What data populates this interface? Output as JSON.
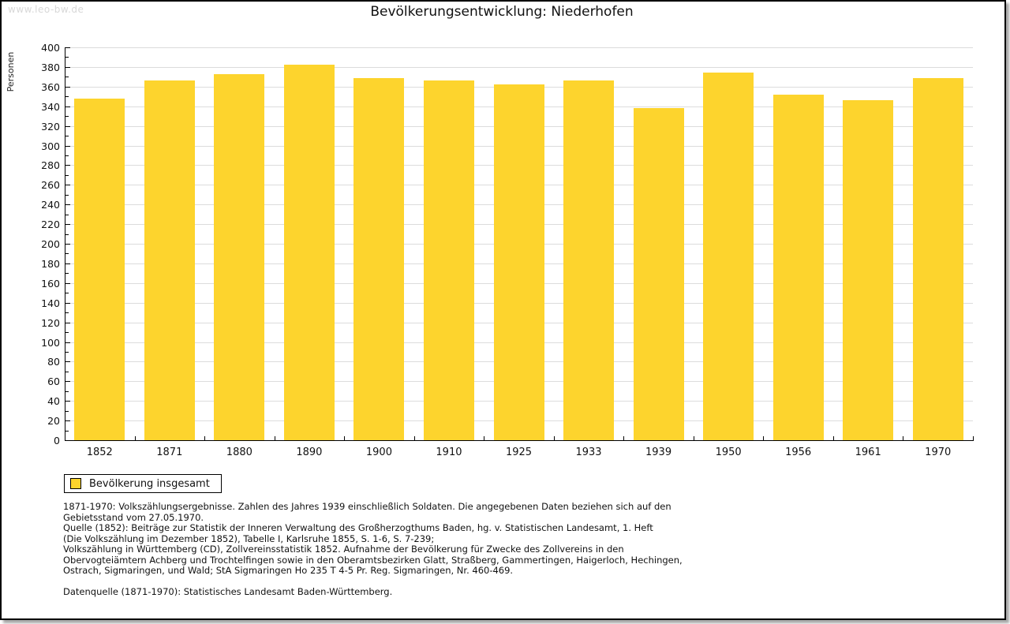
{
  "watermark": "www.leo-bw.de",
  "legend": {
    "label": "Bevölkerung insgesamt"
  },
  "colors": {
    "bar_fill": "#FDD42D",
    "grid_line": "#DCDCDC",
    "axis": "#000000",
    "watermark_text": "#D8D8D8"
  },
  "chart_data": {
    "type": "bar",
    "title": "Bevölkerungsentwicklung: Niederhofen",
    "xlabel": "",
    "ylabel": "Personen",
    "categories": [
      "1852",
      "1871",
      "1880",
      "1890",
      "1900",
      "1910",
      "1925",
      "1933",
      "1939",
      "1950",
      "1956",
      "1961",
      "1970"
    ],
    "values": [
      348,
      366,
      373,
      382,
      369,
      366,
      362,
      366,
      338,
      374,
      352,
      346,
      369
    ],
    "ylim": [
      0,
      400
    ],
    "y_major_step": 20,
    "y_minor_step": 10,
    "grid": "horizontal-major",
    "legend_position": "bottom-left",
    "legend_entries": [
      "Bevölkerung insgesamt"
    ]
  },
  "source_notes": {
    "lines": [
      "1871-1970: Volkszählungsergebnisse. Zahlen des Jahres 1939 einschließlich Soldaten. Die angegebenen Daten beziehen sich auf den",
      "Gebietsstand vom 27.05.1970.",
      "Quelle (1852): Beiträge zur Statistik der Inneren Verwaltung des Großherzogthums Baden, hg. v. Statistischen Landesamt, 1. Heft",
      "(Die Volkszählung im Dezember 1852), Tabelle I, Karlsruhe 1855, S. 1-6, S. 7-239;",
      "Volkszählung in Württemberg (CD), Zollvereinsstatistik 1852. Aufnahme der Bevölkerung für Zwecke des Zollvereins in den",
      "Obervogteiämtern Achberg und Trochtelfingen sowie in den Oberamtsbezirken Glatt, Straßberg, Gammertingen, Haigerloch, Hechingen,",
      "Ostrach, Sigmaringen, und Wald; StA Sigmaringen Ho 235 T 4-5 Pr. Reg. Sigmaringen, Nr. 460-469.",
      "",
      "Datenquelle (1871-1970): Statistisches Landesamt Baden-Württemberg."
    ]
  }
}
